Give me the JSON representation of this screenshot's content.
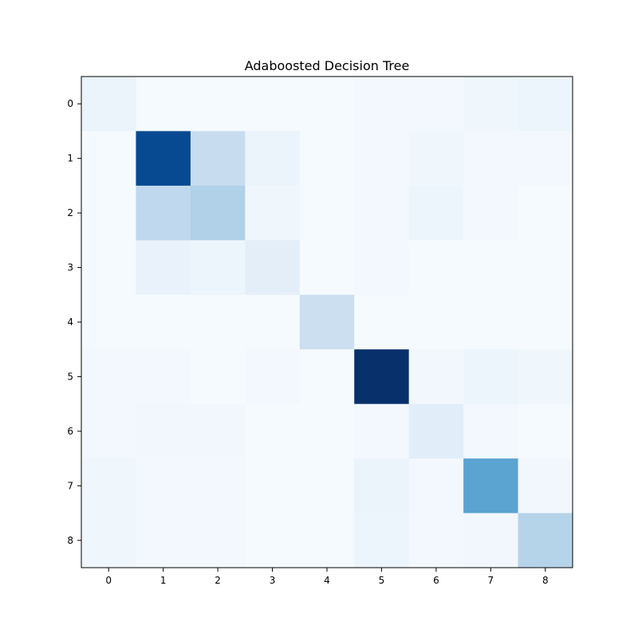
{
  "chart_data": {
    "type": "heatmap",
    "title": "Adaboosted Decision Tree",
    "xlabel": "",
    "ylabel": "",
    "colormap": "Blues",
    "value_range": [
      0,
      1
    ],
    "x_ticks": [
      "0",
      "1",
      "2",
      "3",
      "4",
      "5",
      "6",
      "7",
      "8"
    ],
    "y_ticks": [
      "0",
      "1",
      "2",
      "3",
      "4",
      "5",
      "6",
      "7",
      "8"
    ],
    "grid": false,
    "matrix": [
      [
        0.06,
        0.01,
        0.01,
        0.01,
        0.01,
        0.02,
        0.02,
        0.04,
        0.05
      ],
      [
        0.01,
        0.9,
        0.24,
        0.06,
        0.01,
        0.02,
        0.04,
        0.02,
        0.02
      ],
      [
        0.01,
        0.27,
        0.32,
        0.04,
        0.01,
        0.02,
        0.05,
        0.02,
        0.01
      ],
      [
        0.01,
        0.07,
        0.05,
        0.1,
        0.01,
        0.02,
        0.01,
        0.01,
        0.01
      ],
      [
        0.01,
        0.01,
        0.01,
        0.01,
        0.22,
        0.01,
        0.01,
        0.01,
        0.01
      ],
      [
        0.02,
        0.02,
        0.01,
        0.02,
        0.01,
        1.0,
        0.03,
        0.05,
        0.04
      ],
      [
        0.02,
        0.03,
        0.03,
        0.01,
        0.01,
        0.02,
        0.11,
        0.02,
        0.01
      ],
      [
        0.04,
        0.02,
        0.02,
        0.01,
        0.01,
        0.06,
        0.02,
        0.55,
        0.03
      ],
      [
        0.04,
        0.02,
        0.02,
        0.01,
        0.01,
        0.05,
        0.02,
        0.03,
        0.3
      ]
    ]
  }
}
